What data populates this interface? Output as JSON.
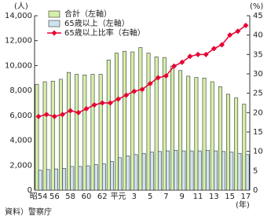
{
  "chart_data": {
    "type": "bar-line",
    "y_label": "(人)",
    "y2_label": "(%)",
    "x_label": "(年)",
    "source": "資料）警察庁",
    "categories": [
      "昭54",
      null,
      "56",
      null,
      "58",
      null,
      "60",
      null,
      "62",
      null,
      "平元",
      null,
      "3",
      null,
      "5",
      null,
      "7",
      null,
      "9",
      null,
      "11",
      null,
      "13",
      null,
      "15",
      null,
      "17"
    ],
    "series": [
      {
        "name": "合計（左軸）",
        "color": "#d4f0a8",
        "kind": "bar",
        "values": [
          8500,
          8700,
          8750,
          8900,
          9450,
          9300,
          9250,
          9300,
          9300,
          10450,
          11000,
          11150,
          11100,
          11450,
          11000,
          10700,
          10650,
          9950,
          9600,
          9150,
          9050,
          9000,
          8700,
          8300,
          7700,
          7400,
          6900
        ]
      },
      {
        "name": "65歳以上（左軸）",
        "color": "#cfe3f2",
        "kind": "bar",
        "values": [
          1600,
          1650,
          1700,
          1750,
          1900,
          1900,
          1950,
          2050,
          2100,
          2300,
          2600,
          2750,
          2850,
          2950,
          3050,
          3100,
          3150,
          3200,
          3150,
          3150,
          3150,
          3200,
          3150,
          3100,
          3050,
          2950,
          2850
        ]
      },
      {
        "name": "65歳以上比率（右軸）",
        "color": "#e60033",
        "kind": "line",
        "axis": "y2",
        "values": [
          19,
          19.5,
          19,
          19.5,
          20.5,
          20,
          21,
          22,
          22.5,
          22.5,
          23.5,
          24.5,
          25.5,
          26,
          27.5,
          29,
          29.5,
          32,
          33,
          34.5,
          35,
          35,
          36.5,
          37.5,
          40,
          41,
          42.5
        ]
      }
    ],
    "ylim": [
      0,
      14000
    ],
    "yticks": [
      0,
      {
        "value": 2000,
        "label": "2,000"
      },
      {
        "value": 4000,
        "label": "4,000"
      },
      {
        "value": 6000,
        "label": "6,000"
      },
      {
        "value": 8000,
        "label": "8,000"
      },
      {
        "value": 10000,
        "label": "10,000"
      },
      {
        "value": 12000,
        "label": "12,000"
      },
      {
        "value": 14000,
        "label": "14,000"
      }
    ],
    "y2lim": [
      0,
      45
    ],
    "y2ticks": [
      0,
      5,
      10,
      15,
      20,
      25,
      30,
      35,
      40,
      45
    ],
    "legend": "upper left"
  }
}
